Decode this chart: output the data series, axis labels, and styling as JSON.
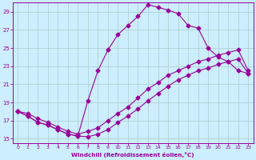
{
  "xlabel": "Windchill (Refroidissement éolien,°C)",
  "bg_color": "#cceeff",
  "grid_color": "#aacccc",
  "line_color": "#990099",
  "xlim": [
    -0.5,
    23.5
  ],
  "ylim": [
    14.5,
    30.0
  ],
  "yticks": [
    15,
    17,
    19,
    21,
    23,
    25,
    27,
    29
  ],
  "xticks": [
    0,
    1,
    2,
    3,
    4,
    5,
    6,
    7,
    8,
    9,
    10,
    11,
    12,
    13,
    14,
    15,
    16,
    17,
    18,
    19,
    20,
    21,
    22,
    23
  ],
  "series1_x": [
    0,
    1,
    2,
    3,
    4,
    5,
    6,
    7,
    8,
    9,
    10,
    11,
    12,
    13,
    14,
    15,
    16,
    17,
    18,
    19,
    20,
    21,
    22,
    23
  ],
  "series1_y": [
    18.0,
    17.5,
    16.8,
    16.5,
    16.0,
    15.5,
    15.3,
    15.2,
    15.5,
    16.0,
    16.8,
    17.5,
    18.3,
    19.2,
    20.0,
    20.8,
    21.5,
    22.0,
    22.5,
    22.8,
    23.2,
    23.5,
    23.8,
    22.2
  ],
  "series2_x": [
    0,
    1,
    2,
    3,
    4,
    5,
    6,
    7,
    8,
    9,
    10,
    11,
    12,
    13,
    14,
    15,
    16,
    17,
    18,
    19,
    20,
    21,
    22,
    23
  ],
  "series2_y": [
    18.0,
    17.5,
    16.8,
    16.5,
    16.0,
    15.5,
    15.3,
    19.2,
    22.5,
    24.8,
    26.5,
    27.5,
    28.5,
    29.8,
    29.5,
    29.2,
    28.8,
    27.5,
    27.2,
    25.0,
    24.0,
    23.5,
    22.5,
    22.2
  ],
  "series3_x": [
    0,
    1,
    2,
    3,
    4,
    5,
    6,
    7,
    8,
    9,
    10,
    11,
    12,
    13,
    14,
    15,
    16,
    17,
    18,
    19,
    20,
    21,
    22,
    23
  ],
  "series3_y": [
    18.0,
    17.8,
    17.2,
    16.8,
    16.3,
    15.8,
    15.5,
    15.8,
    16.2,
    17.0,
    17.8,
    18.5,
    19.5,
    20.5,
    21.2,
    22.0,
    22.5,
    23.0,
    23.5,
    23.8,
    24.2,
    24.5,
    24.8,
    22.5
  ],
  "marker": "D",
  "markersize": 2.5
}
